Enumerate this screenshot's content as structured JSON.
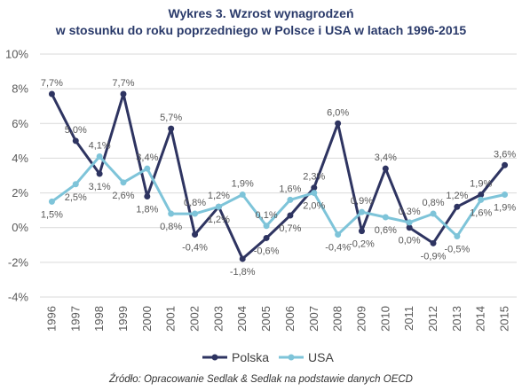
{
  "chart_data": {
    "type": "line",
    "title": "Wykres 3. Wzrost wynagrodzeń",
    "subtitle": "w stosunku do roku poprzedniego w Polsce i USA w latach 1996-2015",
    "source": "Źródło: Opracowanie Sedlak & Sedlak na podstawie danych OECD",
    "x": [
      "1996",
      "1997",
      "1998",
      "1999",
      "2000",
      "2001",
      "2002",
      "2003",
      "2004",
      "2005",
      "2006",
      "2007",
      "2008",
      "2009",
      "2010",
      "2011",
      "2012",
      "2013",
      "2014",
      "2015"
    ],
    "ylim": [
      -4,
      10
    ],
    "yticks": [
      "-4%",
      "-2%",
      "0%",
      "2%",
      "4%",
      "6%",
      "8%",
      "10%"
    ],
    "grid": true,
    "legend": "bottom",
    "series": [
      {
        "name": "Polska",
        "color": "#2e3461",
        "values": [
          7.7,
          5.0,
          3.1,
          7.7,
          1.8,
          5.7,
          -0.4,
          1.2,
          -1.8,
          -0.6,
          0.7,
          2.3,
          6.0,
          -0.2,
          3.4,
          0.0,
          -0.9,
          1.2,
          1.9,
          3.6
        ],
        "labels": [
          "7,7%",
          "5,0%",
          "3,1%",
          "7,7%",
          "1,8%",
          "5,7%",
          "-0,4%",
          "1,2%",
          "-1,8%",
          "-0,6%",
          "0,7%",
          "2,3%",
          "6,0%",
          "-0,2%",
          "3,4%",
          "0,0%",
          "-0,9%",
          "1,2%",
          "1,9%",
          "3,6%"
        ]
      },
      {
        "name": "USA",
        "color": "#7ec4d9",
        "values": [
          1.5,
          2.5,
          4.1,
          2.6,
          3.4,
          0.8,
          0.8,
          1.2,
          1.9,
          0.1,
          1.6,
          2.0,
          -0.4,
          0.9,
          0.6,
          0.3,
          0.8,
          -0.5,
          1.6,
          1.9
        ],
        "labels": [
          "1,5%",
          "2,5%",
          "4,1%",
          "2,6%",
          "3,4%",
          "0,8%",
          "0,8%",
          "1,2%",
          "1,9%",
          "0,1%",
          "1,6%",
          "2,0%",
          "-0,4%",
          "0,9%",
          "0,6%",
          "0,3%",
          "0,8%",
          "-0,5%",
          "1,6%",
          "1,9%"
        ]
      }
    ]
  }
}
